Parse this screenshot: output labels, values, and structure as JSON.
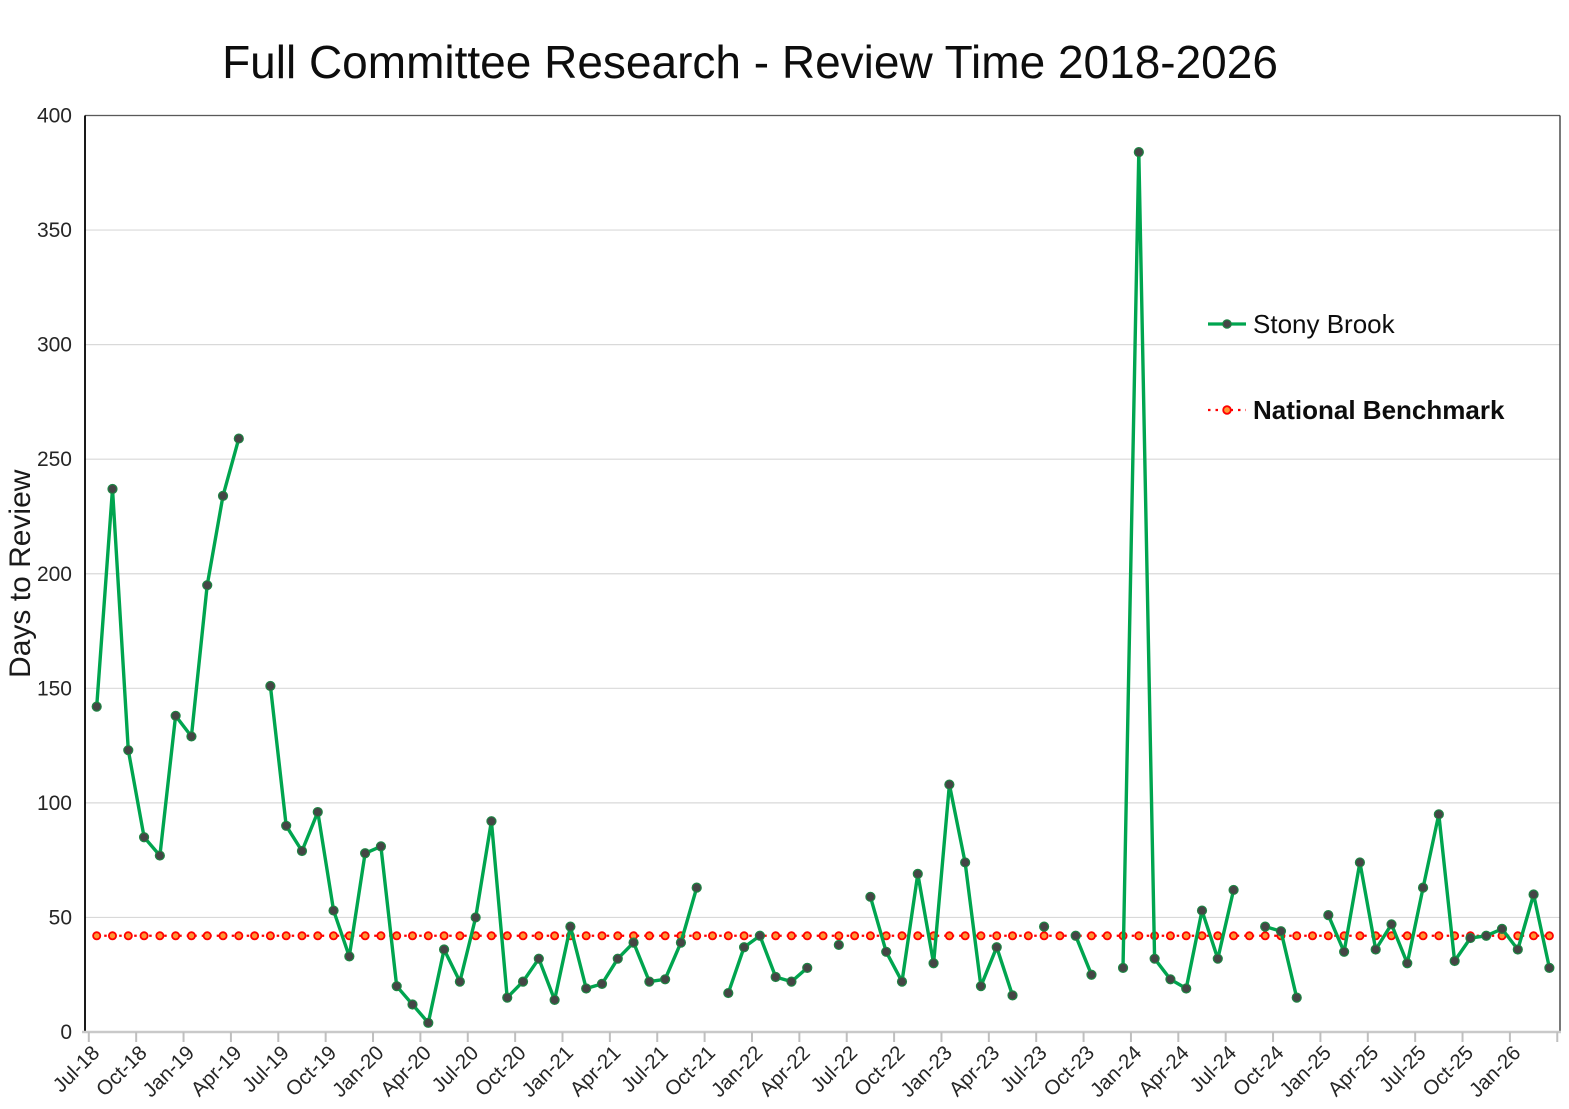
{
  "title": "Full Committee Research - Review Time 2018-2026",
  "y_axis_label": "Days to Review",
  "legend": {
    "series1_label": "Stony Brook",
    "series2_label": "National Benchmark"
  },
  "colors": {
    "series_line": "#00A54F",
    "series_marker": "#454545",
    "benchmark_line": "#FF0000",
    "benchmark_marker_fill": "#FF9735",
    "gridline": "#D9D9D9",
    "axis_text": "#262626",
    "title_text": "#0D0D0D"
  },
  "chart_data": {
    "type": "line",
    "title": "Full Committee Research - Review Time 2018-2026",
    "ylabel": "Days to Review",
    "ylim": [
      0,
      400
    ],
    "y_ticks": [
      0,
      50,
      100,
      150,
      200,
      250,
      300,
      350,
      400
    ],
    "grid": true,
    "legend_position": "right-center",
    "x_tick_labels": [
      "Jul-18",
      "Oct-18",
      "Jan-19",
      "Apr-19",
      "Jul-19",
      "Oct-19",
      "Jan-20",
      "Apr-20",
      "Jul-20",
      "Oct-20",
      "Jan-21",
      "Apr-21",
      "Jul-21",
      "Oct-21",
      "Jan-22",
      "Apr-22",
      "Jul-22",
      "Oct-22",
      "Jan-23",
      "Apr-23",
      "Jul-23",
      "Oct-23",
      "Jan-24",
      "Apr-24",
      "Jul-24",
      "Oct-24",
      "Jan-25",
      "Apr-25",
      "Jul-25",
      "Oct-25",
      "Jan-26"
    ],
    "x": [
      "Jul-18",
      "Aug-18",
      "Sep-18",
      "Oct-18",
      "Nov-18",
      "Dec-18",
      "Jan-19",
      "Feb-19",
      "Mar-19",
      "Apr-19",
      "May-19",
      "Jun-19",
      "Jul-19",
      "Aug-19",
      "Sep-19",
      "Oct-19",
      "Nov-19",
      "Dec-19",
      "Jan-20",
      "Feb-20",
      "Mar-20",
      "Apr-20",
      "May-20",
      "Jun-20",
      "Jul-20",
      "Aug-20",
      "Sep-20",
      "Oct-20",
      "Nov-20",
      "Dec-20",
      "Jan-21",
      "Feb-21",
      "Mar-21",
      "Apr-21",
      "May-21",
      "Jun-21",
      "Jul-21",
      "Aug-21",
      "Sep-21",
      "Oct-21",
      "Nov-21",
      "Dec-21",
      "Jan-22",
      "Feb-22",
      "Mar-22",
      "Apr-22",
      "May-22",
      "Jun-22",
      "Jul-22",
      "Aug-22",
      "Sep-22",
      "Oct-22",
      "Nov-22",
      "Dec-22",
      "Jan-23",
      "Feb-23",
      "Mar-23",
      "Apr-23",
      "May-23",
      "Jun-23",
      "Jul-23",
      "Aug-23",
      "Sep-23",
      "Oct-23",
      "Nov-23",
      "Dec-23",
      "Jan-24",
      "Feb-24",
      "Mar-24",
      "Apr-24",
      "May-24",
      "Jun-24",
      "Jul-24",
      "Aug-24",
      "Sep-24",
      "Oct-24",
      "Nov-24",
      "Dec-24",
      "Jan-25",
      "Feb-25",
      "Mar-25",
      "Apr-25",
      "May-25",
      "Jun-25",
      "Jul-25",
      "Aug-25",
      "Sep-25",
      "Oct-25",
      "Nov-25",
      "Dec-25",
      "Jan-26",
      "Feb-26",
      "Mar-26"
    ],
    "series": [
      {
        "name": "Stony Brook",
        "style": "solid-line-with-markers",
        "values": [
          142,
          237,
          123,
          85,
          77,
          138,
          129,
          195,
          234,
          259,
          null,
          151,
          90,
          79,
          96,
          53,
          33,
          78,
          81,
          20,
          12,
          4,
          36,
          22,
          50,
          92,
          15,
          22,
          32,
          14,
          46,
          19,
          21,
          32,
          39,
          22,
          23,
          39,
          63,
          null,
          17,
          37,
          42,
          24,
          22,
          28,
          null,
          38,
          null,
          59,
          35,
          22,
          69,
          30,
          108,
          74,
          20,
          37,
          16,
          null,
          46,
          null,
          42,
          25,
          null,
          28,
          384,
          32,
          23,
          19,
          53,
          32,
          62,
          null,
          46,
          44,
          15,
          null,
          51,
          35,
          74,
          36,
          47,
          30,
          63,
          95,
          31,
          41,
          42,
          45,
          36,
          60,
          28
        ]
      },
      {
        "name": "National Benchmark",
        "style": "dotted-line-with-markers",
        "constant_value": 42
      }
    ]
  }
}
